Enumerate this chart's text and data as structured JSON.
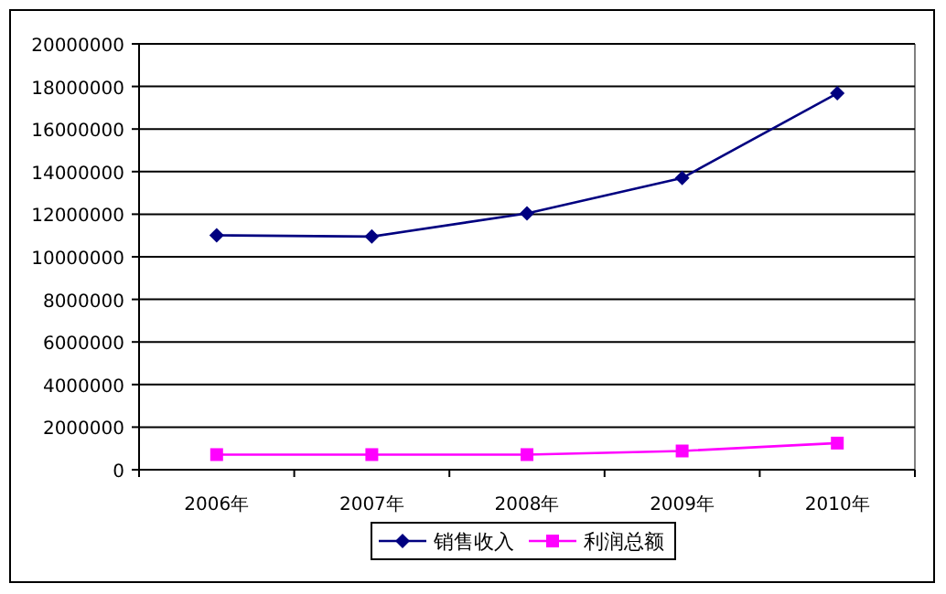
{
  "chart_data": {
    "type": "line",
    "categories": [
      "2006年",
      "2007年",
      "2008年",
      "2009年",
      "2010年"
    ],
    "series": [
      {
        "name": "销售收入",
        "color": "#000080",
        "marker": "diamond",
        "values": [
          11010000,
          10950000,
          12040000,
          13700000,
          17680000
        ]
      },
      {
        "name": "利润总额",
        "color": "#ff00ff",
        "marker": "square",
        "values": [
          710000,
          710000,
          710000,
          880000,
          1250000
        ]
      }
    ],
    "ylim": [
      0,
      20000000
    ],
    "yticks": [
      0,
      2000000,
      4000000,
      6000000,
      8000000,
      10000000,
      12000000,
      14000000,
      16000000,
      18000000,
      20000000
    ],
    "grid": "y",
    "legend": "bottom",
    "line_style": "solid"
  }
}
